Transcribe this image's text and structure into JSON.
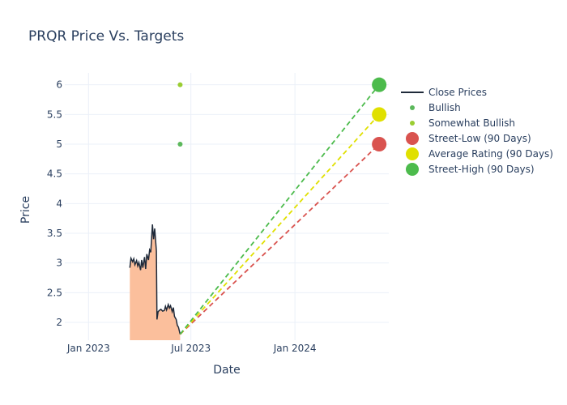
{
  "chart_data": {
    "type": "line",
    "title": "PRQR Price Vs. Targets",
    "xlabel": "Date",
    "ylabel": "Price",
    "x_ticks": [
      "Jan 2023",
      "Jul 2023",
      "Jan 2024"
    ],
    "x_tick_dates": [
      "2023-01-01",
      "2023-07-01",
      "2024-01-01"
    ],
    "y_ticks": [
      "2",
      "2.5",
      "3",
      "3.5",
      "4",
      "4.5",
      "5",
      "5.5",
      "6"
    ],
    "x_range": [
      "2022-11-20",
      "2024-06-15"
    ],
    "ylim": [
      1.7,
      6.2
    ],
    "grid": true,
    "legend_position": "right",
    "colors": {
      "close": "#1f2a3a",
      "fill": "#fbbf9c",
      "bullish": "#5cb85c",
      "somewhat_bullish": "#9acd32",
      "street_low": "#d9534f",
      "average": "#e0e000",
      "street_high": "#4cbb4c"
    },
    "series": [
      {
        "name": "Close Prices",
        "points": [
          [
            "2023-03-15",
            2.92
          ],
          [
            "2023-03-17",
            3.08
          ],
          [
            "2023-03-20",
            3.02
          ],
          [
            "2023-03-22",
            3.07
          ],
          [
            "2023-03-24",
            2.97
          ],
          [
            "2023-03-27",
            3.04
          ],
          [
            "2023-03-29",
            2.95
          ],
          [
            "2023-03-31",
            3.01
          ],
          [
            "2023-04-03",
            2.88
          ],
          [
            "2023-04-05",
            3.05
          ],
          [
            "2023-04-07",
            2.92
          ],
          [
            "2023-04-10",
            3.1
          ],
          [
            "2023-04-12",
            2.9
          ],
          [
            "2023-04-14",
            3.15
          ],
          [
            "2023-04-17",
            3.05
          ],
          [
            "2023-04-19",
            3.22
          ],
          [
            "2023-04-21",
            3.18
          ],
          [
            "2023-04-24",
            3.65
          ],
          [
            "2023-04-26",
            3.4
          ],
          [
            "2023-04-28",
            3.58
          ],
          [
            "2023-05-01",
            3.2
          ],
          [
            "2023-05-02",
            2.05
          ],
          [
            "2023-05-04",
            2.18
          ],
          [
            "2023-05-06",
            2.2
          ],
          [
            "2023-05-09",
            2.22
          ],
          [
            "2023-05-12",
            2.19
          ],
          [
            "2023-05-15",
            2.2
          ],
          [
            "2023-05-17",
            2.27
          ],
          [
            "2023-05-19",
            2.21
          ],
          [
            "2023-05-22",
            2.3
          ],
          [
            "2023-05-24",
            2.24
          ],
          [
            "2023-05-26",
            2.28
          ],
          [
            "2023-05-29",
            2.18
          ],
          [
            "2023-05-31",
            2.25
          ],
          [
            "2023-06-02",
            2.1
          ],
          [
            "2023-06-05",
            2.05
          ],
          [
            "2023-06-07",
            1.95
          ],
          [
            "2023-06-09",
            1.92
          ],
          [
            "2023-06-12",
            1.8
          ]
        ]
      },
      {
        "name": "Bullish",
        "points": [
          [
            "2023-06-12",
            5.0
          ]
        ]
      },
      {
        "name": "Somewhat Bullish",
        "points": [
          [
            "2023-06-12",
            6.0
          ]
        ]
      },
      {
        "name": "Street-Low (90 Days)",
        "points": [
          [
            "2023-06-12",
            1.8
          ],
          [
            "2024-05-29",
            5.0
          ]
        ]
      },
      {
        "name": "Average Rating (90 Days)",
        "points": [
          [
            "2023-06-12",
            1.8
          ],
          [
            "2024-05-29",
            5.5
          ]
        ]
      },
      {
        "name": "Street-High (90 Days)",
        "points": [
          [
            "2023-06-12",
            1.8
          ],
          [
            "2024-05-29",
            6.0
          ]
        ]
      }
    ]
  }
}
